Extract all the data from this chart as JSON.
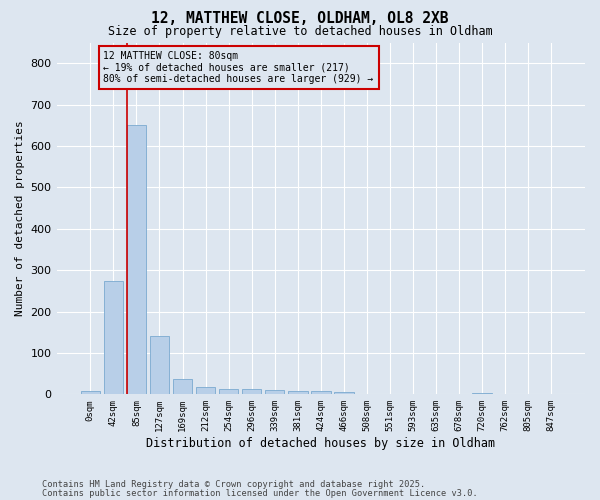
{
  "title1": "12, MATTHEW CLOSE, OLDHAM, OL8 2XB",
  "title2": "Size of property relative to detached houses in Oldham",
  "xlabel": "Distribution of detached houses by size in Oldham",
  "ylabel": "Number of detached properties",
  "bins": [
    "0sqm",
    "42sqm",
    "85sqm",
    "127sqm",
    "169sqm",
    "212sqm",
    "254sqm",
    "296sqm",
    "339sqm",
    "381sqm",
    "424sqm",
    "466sqm",
    "508sqm",
    "551sqm",
    "593sqm",
    "635sqm",
    "678sqm",
    "720sqm",
    "762sqm",
    "805sqm",
    "847sqm"
  ],
  "values": [
    8,
    275,
    650,
    140,
    38,
    18,
    13,
    12,
    10,
    8,
    8,
    6,
    0,
    0,
    0,
    0,
    0,
    3,
    0,
    0,
    0
  ],
  "bar_color": "#b8cfe8",
  "bar_edge_color": "#7aaad0",
  "vline_color": "#cc0000",
  "annotation_text": "12 MATTHEW CLOSE: 80sqm\n← 19% of detached houses are smaller (217)\n80% of semi-detached houses are larger (929) →",
  "annotation_box_color": "#cc0000",
  "bg_color": "#dde6f0",
  "grid_color": "#ffffff",
  "ylim": [
    0,
    850
  ],
  "yticks": [
    0,
    100,
    200,
    300,
    400,
    500,
    600,
    700,
    800
  ],
  "footer1": "Contains HM Land Registry data © Crown copyright and database right 2025.",
  "footer2": "Contains public sector information licensed under the Open Government Licence v3.0."
}
